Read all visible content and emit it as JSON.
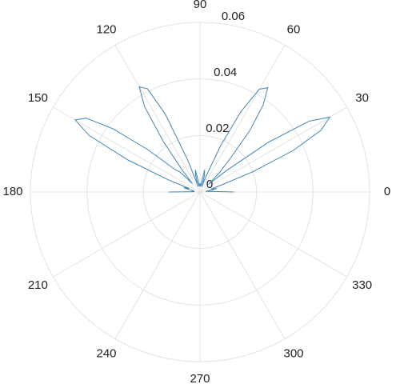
{
  "chart_data": {
    "type": "polar",
    "rlim": [
      0,
      0.06
    ],
    "rticks": [
      0,
      0.02,
      0.04,
      0.06
    ],
    "thetaticks": [
      0,
      30,
      60,
      90,
      120,
      150,
      180,
      210,
      240,
      270,
      300,
      330
    ],
    "grid": true,
    "series": [
      {
        "color": "#3f86b5",
        "theta": [
          0,
          3,
          6,
          9,
          12,
          15,
          18,
          21,
          24,
          27,
          30,
          33,
          36,
          39,
          42,
          45,
          48,
          51,
          54,
          57,
          60,
          63,
          66,
          69,
          72,
          75,
          78,
          81,
          84,
          87,
          90,
          93,
          96,
          99,
          102,
          105,
          108,
          111,
          114,
          117,
          120,
          123,
          126,
          129,
          132,
          135,
          138,
          141,
          144,
          147,
          150,
          153,
          156,
          159,
          162,
          165,
          168,
          171,
          174,
          177,
          180
        ],
        "r": [
          0.012,
          0.004,
          0.002,
          0.004,
          0.006,
          0.004,
          0.008,
          0.02,
          0.036,
          0.048,
          0.053,
          0.046,
          0.03,
          0.012,
          0.004,
          0.01,
          0.016,
          0.028,
          0.038,
          0.044,
          0.042,
          0.032,
          0.018,
          0.006,
          0.002,
          0.006,
          0.008,
          0.004,
          0.002,
          0.003,
          0.002,
          0.003,
          0.002,
          0.004,
          0.008,
          0.006,
          0.002,
          0.012,
          0.03,
          0.041,
          0.043,
          0.036,
          0.022,
          0.01,
          0.004,
          0.01,
          0.012,
          0.024,
          0.038,
          0.048,
          0.051,
          0.044,
          0.028,
          0.012,
          0.004,
          0.006,
          0.004,
          0.002,
          0.003,
          0.002,
          0.011
        ]
      }
    ]
  }
}
